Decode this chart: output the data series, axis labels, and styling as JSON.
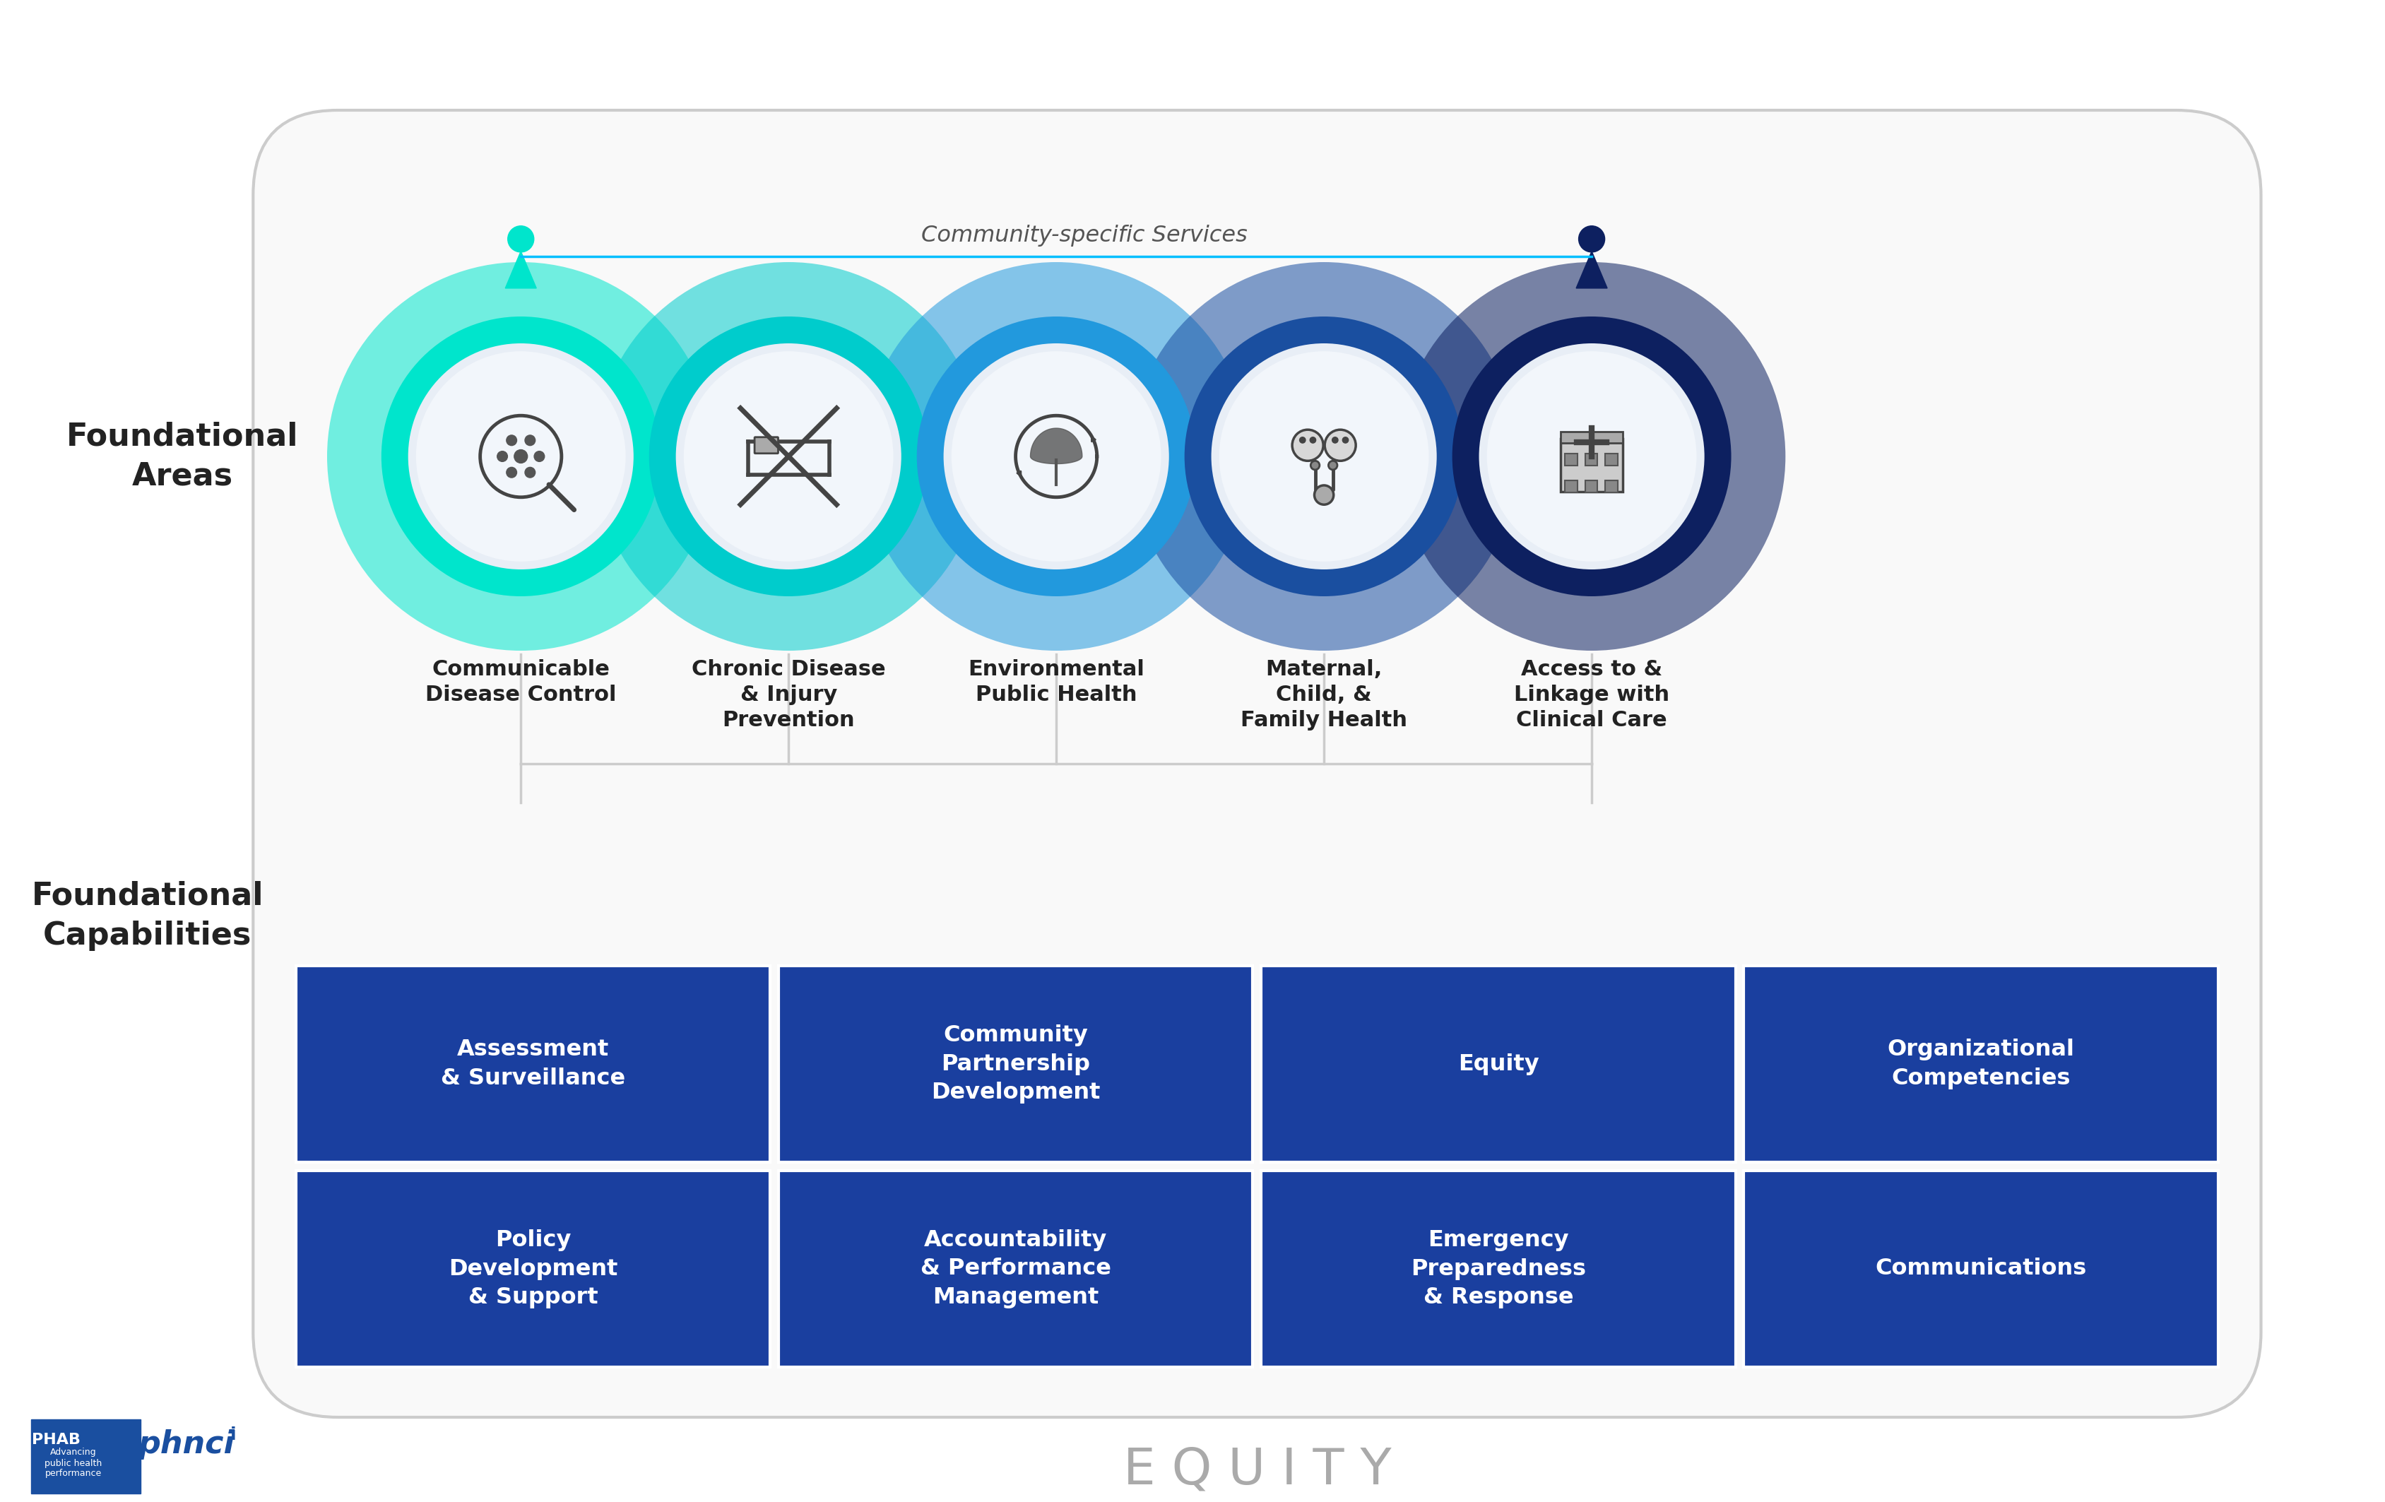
{
  "bg_color": "#ffffff",
  "equity_text": "E Q U I T Y",
  "equity_color": "#aaaaaa",
  "community_services_label": "Community-specific Services",
  "community_services_line_color": "#00bfff",
  "foundational_areas_label": "Foundational\nAreas",
  "foundational_capabilities_label": "Foundational\nCapabilities",
  "left_label_color": "#222222",
  "circles": [
    {
      "name": "Communicable\nDisease Control",
      "outer_color": "#00e5cc"
    },
    {
      "name": "Chronic Disease\n& Injury\nPrevention",
      "outer_color": "#00cccc"
    },
    {
      "name": "Environmental\nPublic Health",
      "outer_color": "#2299dd"
    },
    {
      "name": "Maternal,\nChild, &\nFamily Health",
      "outer_color": "#1a4fa0"
    },
    {
      "name": "Access to &\nLinkage with\nClinical Care",
      "outer_color": "#0d2060"
    }
  ],
  "person_left_color": "#00e5cc",
  "person_right_color": "#0d2060",
  "grid_bg": "#1a3f9f",
  "grid_border": "#ffffff",
  "capabilities_row1": [
    "Assessment\n& Surveillance",
    "Community\nPartnership\nDevelopment",
    "Equity",
    "Organizational\nCompetencies"
  ],
  "capabilities_row2": [
    "Policy\nDevelopment\n& Support",
    "Accountability\n& Performance\nManagement",
    "Emergency\nPreparedness\n& Response",
    "Communications"
  ],
  "cap_text_color": "#ffffff",
  "connector_color": "#cccccc",
  "phab_blue": "#1a4fa0"
}
